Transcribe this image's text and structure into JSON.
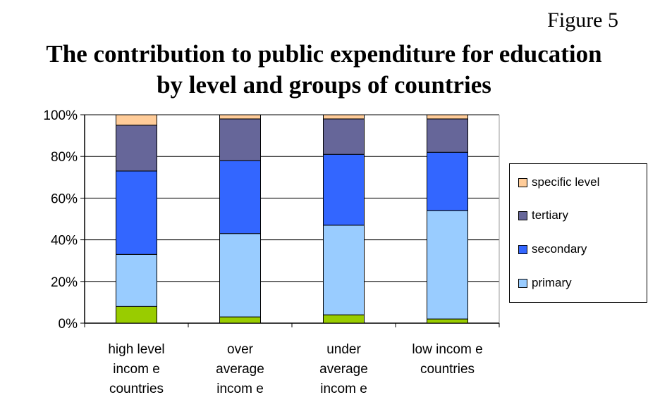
{
  "figure_label": "Figure 5",
  "chart_data": {
    "type": "bar",
    "stacked": true,
    "title": "The contribution to public expenditure for education by level and groups of countries",
    "title_lines": [
      "The contribution to public expenditure for education",
      "by level and groups of countries"
    ],
    "categories": [
      "high level income countries",
      "over average income",
      "under average income",
      "low income countries"
    ],
    "category_lines": [
      [
        "high level",
        "incom e",
        "countries"
      ],
      [
        "over",
        "average",
        "incom e"
      ],
      [
        "under",
        "average",
        "incom e"
      ],
      [
        "low incom e",
        "countries"
      ]
    ],
    "ylim": [
      0,
      100
    ],
    "yticks": [
      "0%",
      "20%",
      "40%",
      "60%",
      "80%",
      "100%"
    ],
    "grid": true,
    "legend_position": "right",
    "series": [
      {
        "values": [
          8,
          3,
          4,
          2
        ],
        "color": "#99CC00"
      },
      {
        "name": "primary",
        "values": [
          25,
          40,
          43,
          52
        ],
        "color": "#99CCFF"
      },
      {
        "name": "secondary",
        "values": [
          40,
          35,
          34,
          28
        ],
        "color": "#3366FF"
      },
      {
        "name": "tertiary",
        "values": [
          22,
          20,
          17,
          16
        ],
        "color": "#666699"
      },
      {
        "name": "specific level",
        "values": [
          5,
          2,
          2,
          2
        ],
        "color": "#FFCC99"
      }
    ]
  }
}
